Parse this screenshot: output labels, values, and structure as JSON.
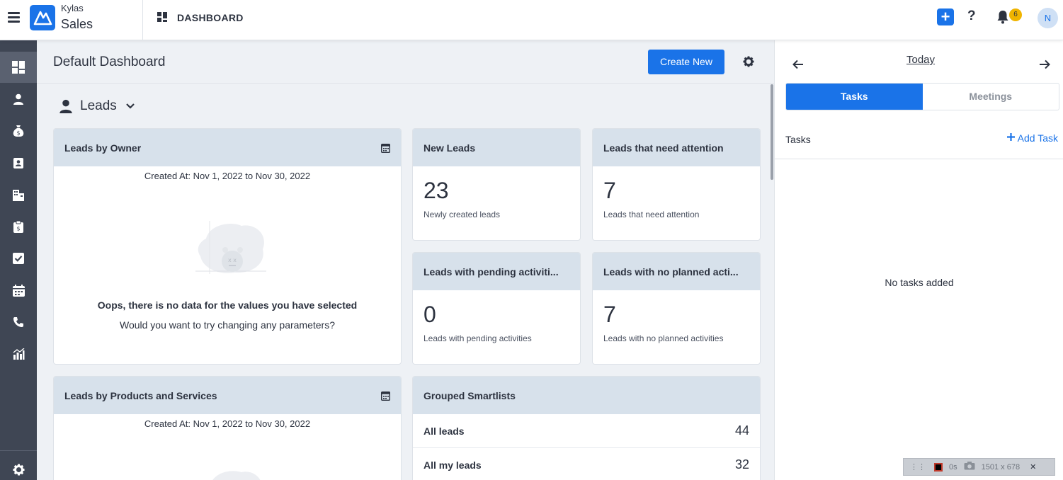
{
  "app": {
    "brand_top": "Kylas",
    "brand_bottom": "Sales",
    "section": "DASHBOARD"
  },
  "topbar": {
    "add_label": "+",
    "help_label": "?",
    "notification_count": "6",
    "avatar_initial": "N"
  },
  "sidebar": {
    "items": [
      "dashboard-icon",
      "user-icon",
      "money-bag-icon",
      "contact-card-icon",
      "company-icon",
      "clipboard-icon",
      "tasks-check-icon",
      "calendar-icon",
      "phone-icon",
      "reports-icon"
    ],
    "footer": "gear-icon"
  },
  "main": {
    "title": "Default Dashboard",
    "create_button": "Create New",
    "entity_selector": "Leads",
    "cards": {
      "leads_by_owner": {
        "title": "Leads by Owner",
        "created_at": "Created At: Nov 1, 2022 to Nov 30, 2022",
        "nodata_title": "Oops, there is no data for the values you have selected",
        "nodata_sub": "Would you want to try changing any parameters?"
      },
      "new_leads": {
        "title": "New Leads",
        "value": "23",
        "caption": "Newly created leads"
      },
      "need_attention": {
        "title": "Leads that need attention",
        "value": "7",
        "caption": "Leads that need attention"
      },
      "pending_activities": {
        "title": "Leads with pending activiti...",
        "value": "0",
        "caption": "Leads with pending activities"
      },
      "no_planned": {
        "title": "Leads with no planned acti...",
        "value": "7",
        "caption": "Leads with no planned activities"
      },
      "leads_by_products": {
        "title": "Leads by Products and Services",
        "created_at": "Created At: Nov 1, 2022 to Nov 30, 2022"
      },
      "grouped_smartlists": {
        "title": "Grouped Smartlists",
        "rows": [
          {
            "label": "All leads",
            "count": "44"
          },
          {
            "label": "All my leads",
            "count": "32"
          }
        ]
      }
    }
  },
  "right_panel": {
    "date_label": "Today",
    "tabs": [
      "Tasks",
      "Meetings"
    ],
    "active_tab": "Tasks",
    "section_label": "Tasks",
    "add_task_label": "Add Task",
    "empty_text": "No tasks added"
  },
  "recorder": {
    "time": "0s",
    "size": "1501 x 678"
  },
  "colors": {
    "primary": "#1a73e8",
    "sidebar": "#3f4654",
    "card_header": "#d7e1eb",
    "badge": "#f0b400"
  }
}
